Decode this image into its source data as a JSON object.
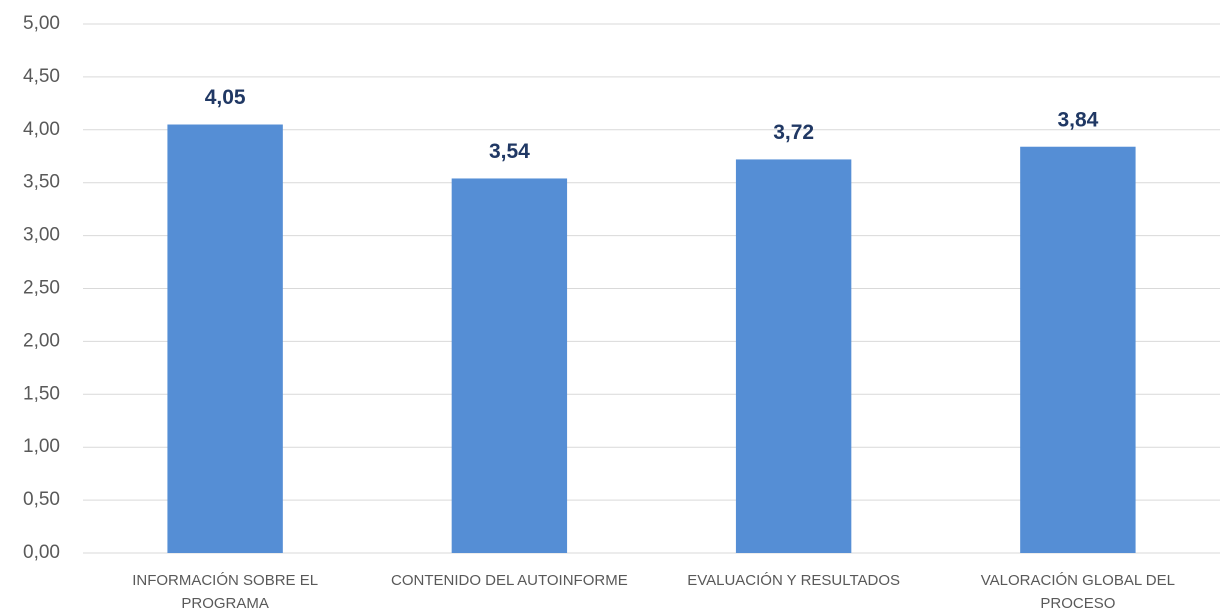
{
  "chart_data": {
    "type": "bar",
    "categories": [
      "INFORMACIÓN SOBRE EL PROGRAMA",
      "CONTENIDO DEL AUTOINFORME",
      "EVALUACIÓN Y RESULTADOS",
      "VALORACIÓN GLOBAL DEL PROCESO"
    ],
    "values": [
      4.05,
      3.54,
      3.72,
      3.84
    ],
    "value_labels": [
      "4,05",
      "3,54",
      "3,72",
      "3,84"
    ],
    "color": "#558ed5",
    "ylim": [
      0,
      5
    ],
    "yticks": [
      {
        "value": 0,
        "label": "0,00"
      },
      {
        "value": 0.5,
        "label": "0,50"
      },
      {
        "value": 1,
        "label": "1,00"
      },
      {
        "value": 1.5,
        "label": "1,50"
      },
      {
        "value": 2,
        "label": "2,00"
      },
      {
        "value": 2.5,
        "label": "2,50"
      },
      {
        "value": 3,
        "label": "3,00"
      },
      {
        "value": 3.5,
        "label": "3,50"
      },
      {
        "value": 4,
        "label": "4,00"
      },
      {
        "value": 4.5,
        "label": "4,50"
      },
      {
        "value": 5,
        "label": "5,00"
      }
    ],
    "grid": true
  }
}
